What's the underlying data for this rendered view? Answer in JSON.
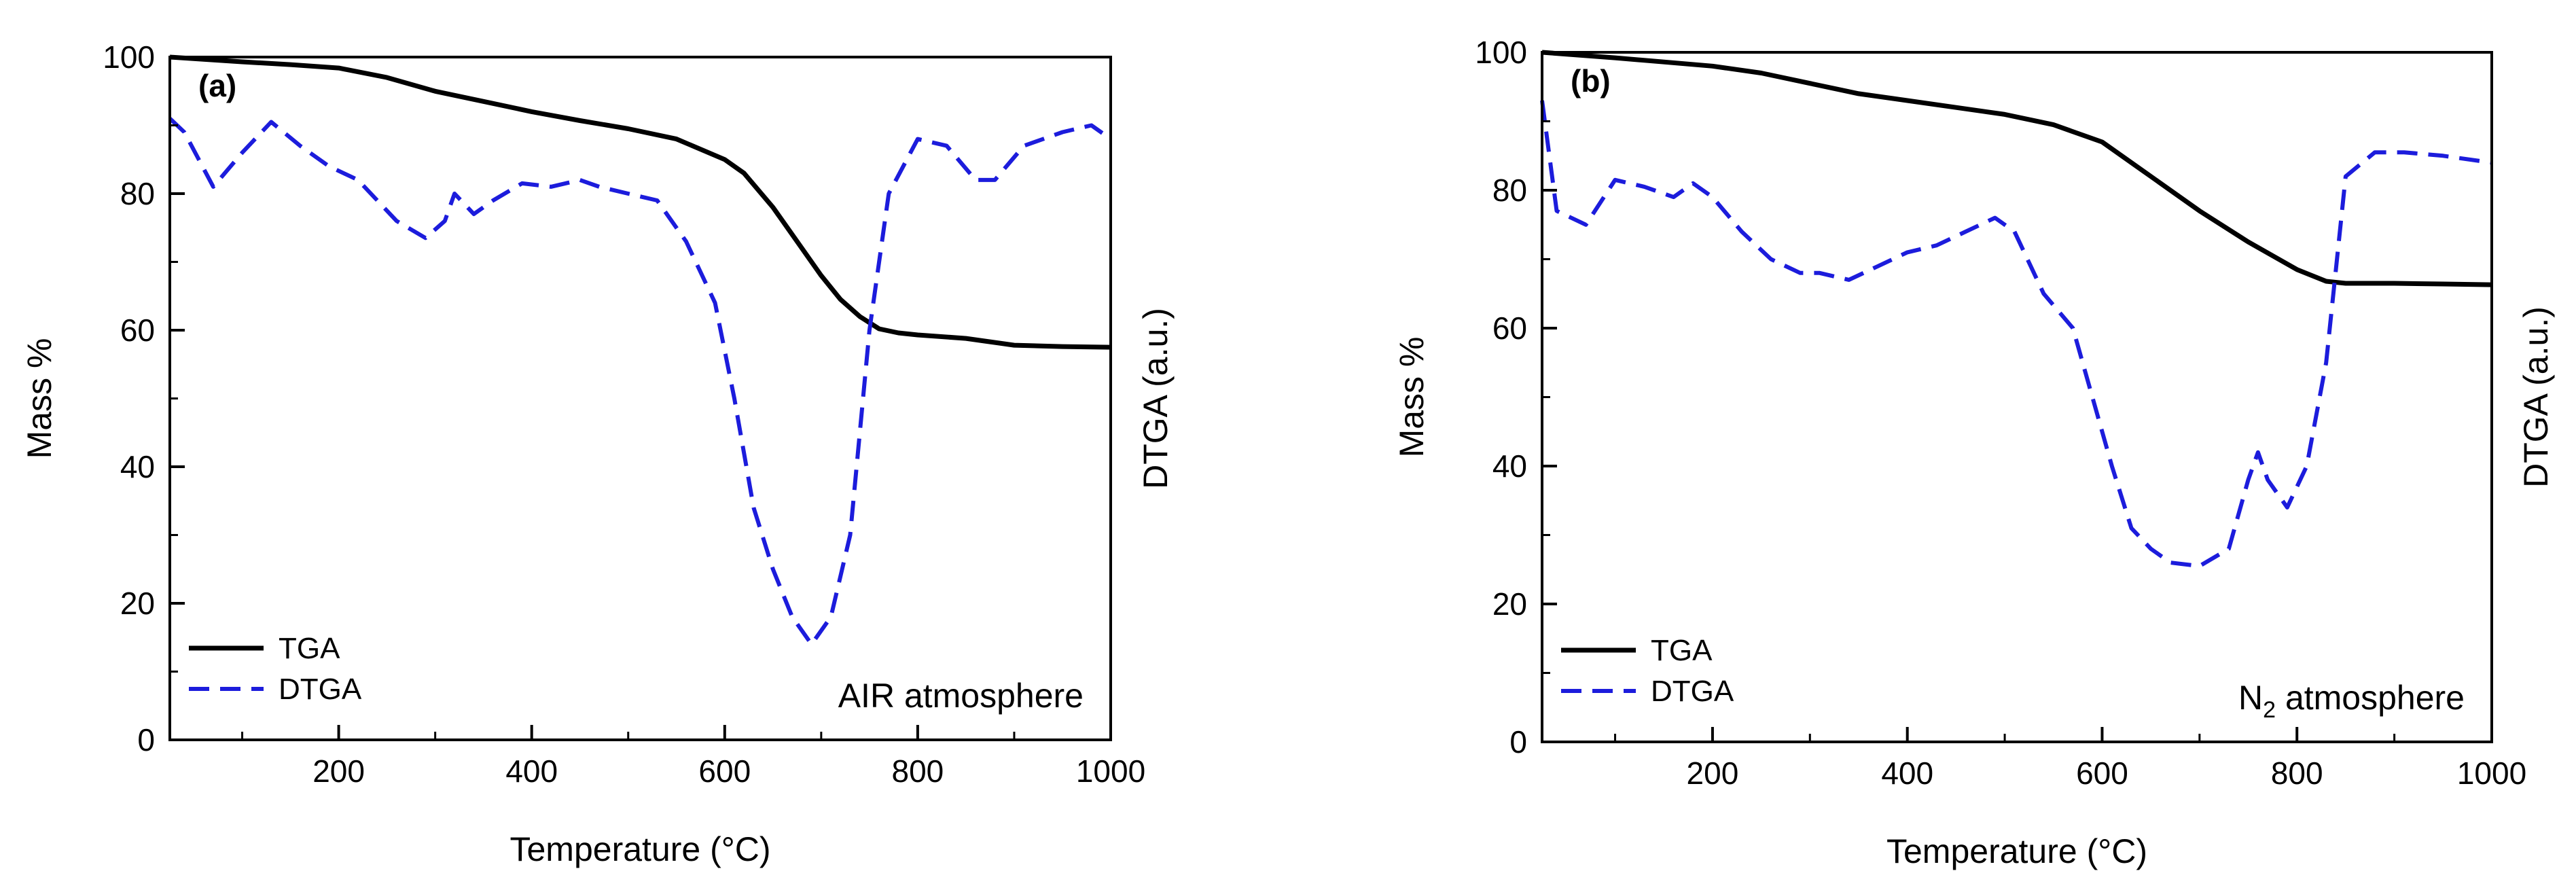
{
  "chart_data": [
    {
      "type": "line",
      "panel_label": "(a)",
      "annotation": {
        "prefix": "AIR",
        "subscript": "",
        "suffix": " atmosphere"
      },
      "xlabel": "Temperature (°C)",
      "ylabel": "Mass %",
      "y2label": "DTGA (a.u.)",
      "xlim": [
        25,
        1000
      ],
      "ylim": [
        0,
        100
      ],
      "xticks": [
        200,
        400,
        600,
        800,
        1000
      ],
      "yticks": [
        0,
        20,
        40,
        60,
        80,
        100
      ],
      "legend_position": "bottom-left",
      "grid": false,
      "series": [
        {
          "name": "TGA",
          "style": "solid",
          "color": "#000000",
          "x": [
            25,
            100,
            150,
            200,
            250,
            300,
            350,
            400,
            450,
            500,
            550,
            600,
            620,
            650,
            680,
            700,
            720,
            740,
            760,
            780,
            800,
            850,
            870,
            900,
            950,
            1000
          ],
          "y": [
            100,
            99.3,
            98.9,
            98.4,
            97,
            95,
            93.5,
            92,
            90.7,
            89.5,
            88,
            85,
            83,
            78,
            72,
            68,
            64.5,
            62,
            60.2,
            59.6,
            59.3,
            58.8,
            58.4,
            57.8,
            57.6,
            57.5
          ]
        },
        {
          "name": "DTGA",
          "style": "dashed",
          "color": "#1c1cdc",
          "x": [
            25,
            40,
            70,
            100,
            130,
            160,
            190,
            220,
            260,
            290,
            310,
            320,
            340,
            360,
            390,
            420,
            450,
            470,
            500,
            530,
            560,
            590,
            610,
            630,
            650,
            670,
            690,
            710,
            730,
            750,
            770,
            800,
            830,
            860,
            880,
            910,
            950,
            980,
            1000
          ],
          "y": [
            91,
            89,
            81,
            86,
            90.5,
            87,
            84,
            82,
            76,
            73.5,
            76,
            80,
            77,
            79,
            81.5,
            81,
            82,
            81,
            80,
            79,
            73,
            64,
            50,
            34,
            25,
            18,
            14,
            18,
            30,
            60,
            80,
            88,
            87,
            82,
            82,
            87,
            89,
            90,
            88
          ]
        }
      ]
    },
    {
      "type": "line",
      "panel_label": "(b)",
      "annotation": {
        "prefix": "N",
        "subscript": "2",
        "suffix": " atmosphere"
      },
      "xlabel": "Temperature (°C)",
      "ylabel": "Mass %",
      "y2label": "DTGA (a.u.)",
      "xlim": [
        25,
        1000
      ],
      "ylim": [
        0,
        100
      ],
      "xticks": [
        200,
        400,
        600,
        800,
        1000
      ],
      "yticks": [
        0,
        20,
        40,
        60,
        80,
        100
      ],
      "legend_position": "bottom-left",
      "grid": false,
      "series": [
        {
          "name": "TGA",
          "style": "solid",
          "color": "#000000",
          "x": [
            25,
            100,
            150,
            200,
            250,
            300,
            350,
            400,
            450,
            500,
            550,
            600,
            650,
            700,
            750,
            800,
            830,
            850,
            900,
            950,
            1000
          ],
          "y": [
            100,
            99.2,
            98.6,
            98,
            97,
            95.5,
            94,
            93,
            92,
            91,
            89.5,
            87,
            82,
            77,
            72.5,
            68.5,
            66.8,
            66.5,
            66.5,
            66.4,
            66.3
          ]
        },
        {
          "name": "DTGA",
          "style": "dashed",
          "color": "#1c1cdc",
          "x": [
            25,
            40,
            70,
            100,
            130,
            160,
            180,
            200,
            230,
            260,
            290,
            310,
            340,
            370,
            400,
            430,
            460,
            490,
            510,
            540,
            570,
            590,
            610,
            630,
            650,
            670,
            700,
            730,
            750,
            760,
            770,
            790,
            810,
            830,
            850,
            880,
            910,
            950,
            1000
          ],
          "y": [
            93,
            77,
            75,
            81.5,
            80.5,
            79,
            81,
            79,
            74,
            70,
            68,
            68,
            67,
            69,
            71,
            72,
            74,
            76,
            74,
            65,
            60,
            50,
            40,
            31,
            28,
            26,
            25.5,
            28,
            38,
            42,
            38,
            34,
            40,
            55,
            82,
            85.5,
            85.5,
            85,
            84
          ]
        }
      ]
    }
  ]
}
